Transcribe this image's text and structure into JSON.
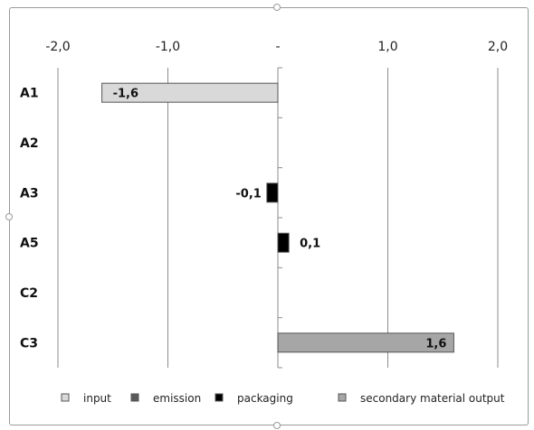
{
  "chart_data": {
    "type": "bar",
    "orientation": "horizontal",
    "title": "",
    "xlabel": "",
    "ylabel": "",
    "xlim": [
      -2.0,
      2.0
    ],
    "x_ticks": [
      {
        "value": -2.0,
        "label": "-2,0"
      },
      {
        "value": -1.0,
        "label": "-1,0"
      },
      {
        "value": 0.0,
        "label": "-"
      },
      {
        "value": 1.0,
        "label": "1,0"
      },
      {
        "value": 2.0,
        "label": "2,0"
      }
    ],
    "categories": [
      "A1",
      "A2",
      "A3",
      "A5",
      "C2",
      "C3"
    ],
    "series": [
      {
        "name": "input",
        "color": "#d9d9d9",
        "values": [
          -1.6,
          null,
          null,
          null,
          null,
          null
        ],
        "labels": [
          "-1,6",
          "",
          "",
          "",
          "",
          ""
        ]
      },
      {
        "name": "emission",
        "color": "#595959",
        "values": [
          null,
          null,
          null,
          null,
          null,
          null
        ],
        "labels": [
          "",
          "",
          "",
          "",
          "",
          ""
        ]
      },
      {
        "name": "packaging",
        "color": "#000000",
        "values": [
          null,
          null,
          -0.1,
          0.1,
          null,
          null
        ],
        "labels": [
          "",
          "",
          "-0,1",
          "0,1",
          "",
          ""
        ]
      },
      {
        "name": "secondary material output",
        "color": "#a6a6a6",
        "values": [
          null,
          null,
          null,
          null,
          null,
          1.6
        ],
        "labels": [
          "",
          "",
          "",
          "",
          "",
          "1,6"
        ]
      }
    ],
    "legend_position": "bottom",
    "grid": "vertical",
    "axis_position": "top"
  }
}
